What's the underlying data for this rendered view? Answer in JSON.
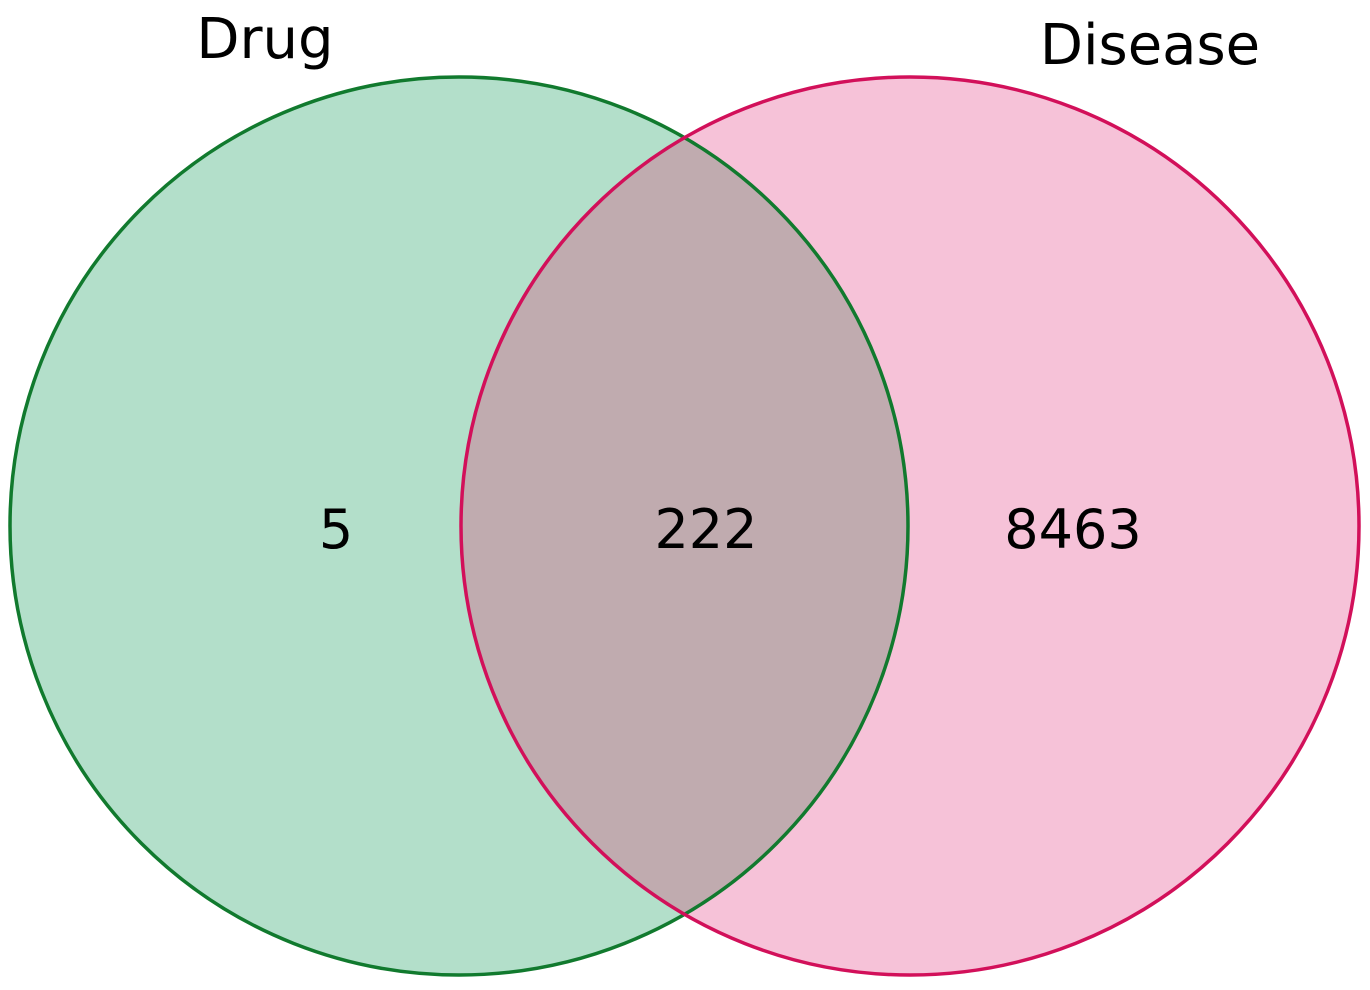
{
  "chart_data": {
    "type": "venn",
    "sets": [
      {
        "name": "Drug",
        "fill": "#b3dfca",
        "stroke": "#117a2e"
      },
      {
        "name": "Disease",
        "fill": "#f6c2d8",
        "stroke": "#d2105a"
      }
    ],
    "regions": {
      "drug_only": "5",
      "intersection": "222",
      "disease_only": "8463"
    },
    "intersection_fill": "#c0abaf"
  }
}
